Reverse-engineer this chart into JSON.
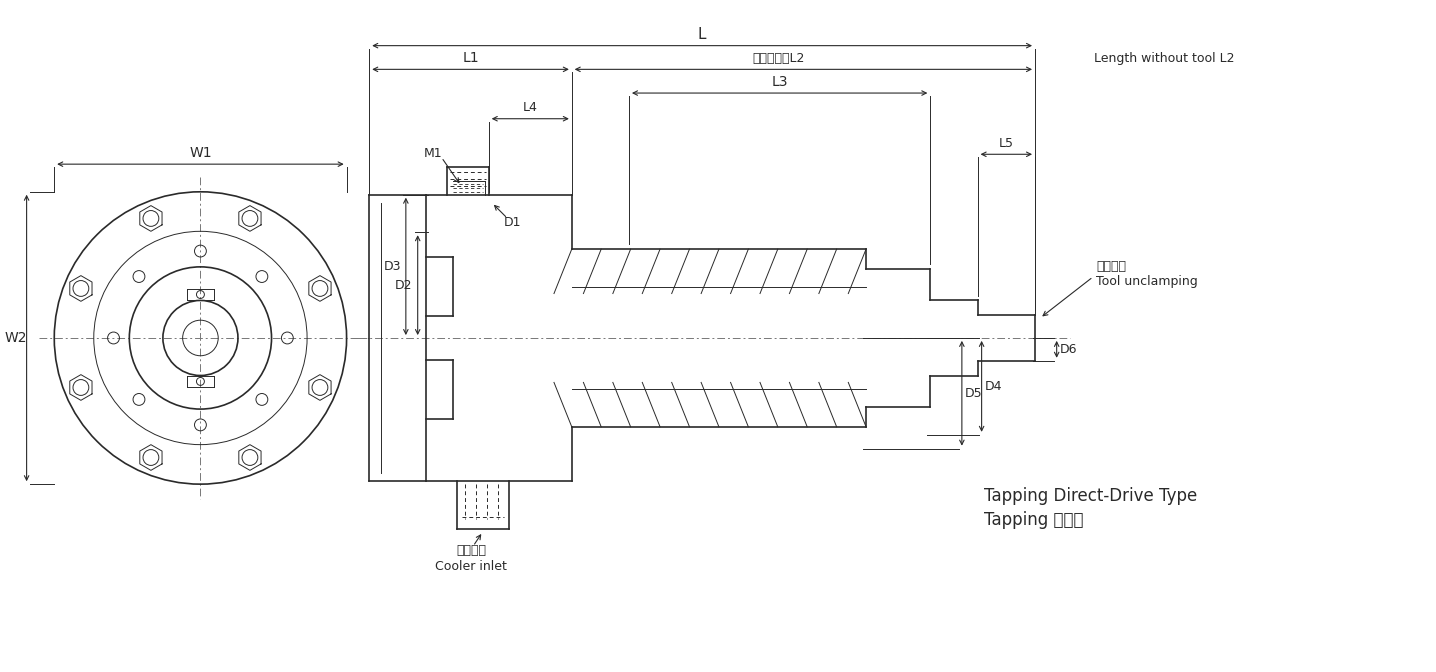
{
  "bg_color": "#ffffff",
  "line_color": "#2a2a2a",
  "title1": "Tapping Direct-Drive Type",
  "title2": "Tapping 直結式",
  "label_L": "L",
  "label_L1": "L1",
  "label_L2": "L2",
  "label_L3": "L3",
  "label_L4": "L4",
  "label_L5": "L5",
  "label_D1": "D1",
  "label_D2": "D2",
  "label_D3": "D3",
  "label_D4": "D4",
  "label_D5": "D5",
  "label_D6": "D6",
  "label_M1": "M1",
  "label_W1": "W1",
  "label_W2": "W2",
  "label_cooler_cn": "冷卻油入",
  "label_cooler_en": "Cooler inlet",
  "label_nocutter": "無刀具時　L2",
  "label_nocutter_en": "Length without tool L2",
  "label_unclamp_cn": "打刀位置",
  "label_unclamp_en": "Tool unclamping"
}
